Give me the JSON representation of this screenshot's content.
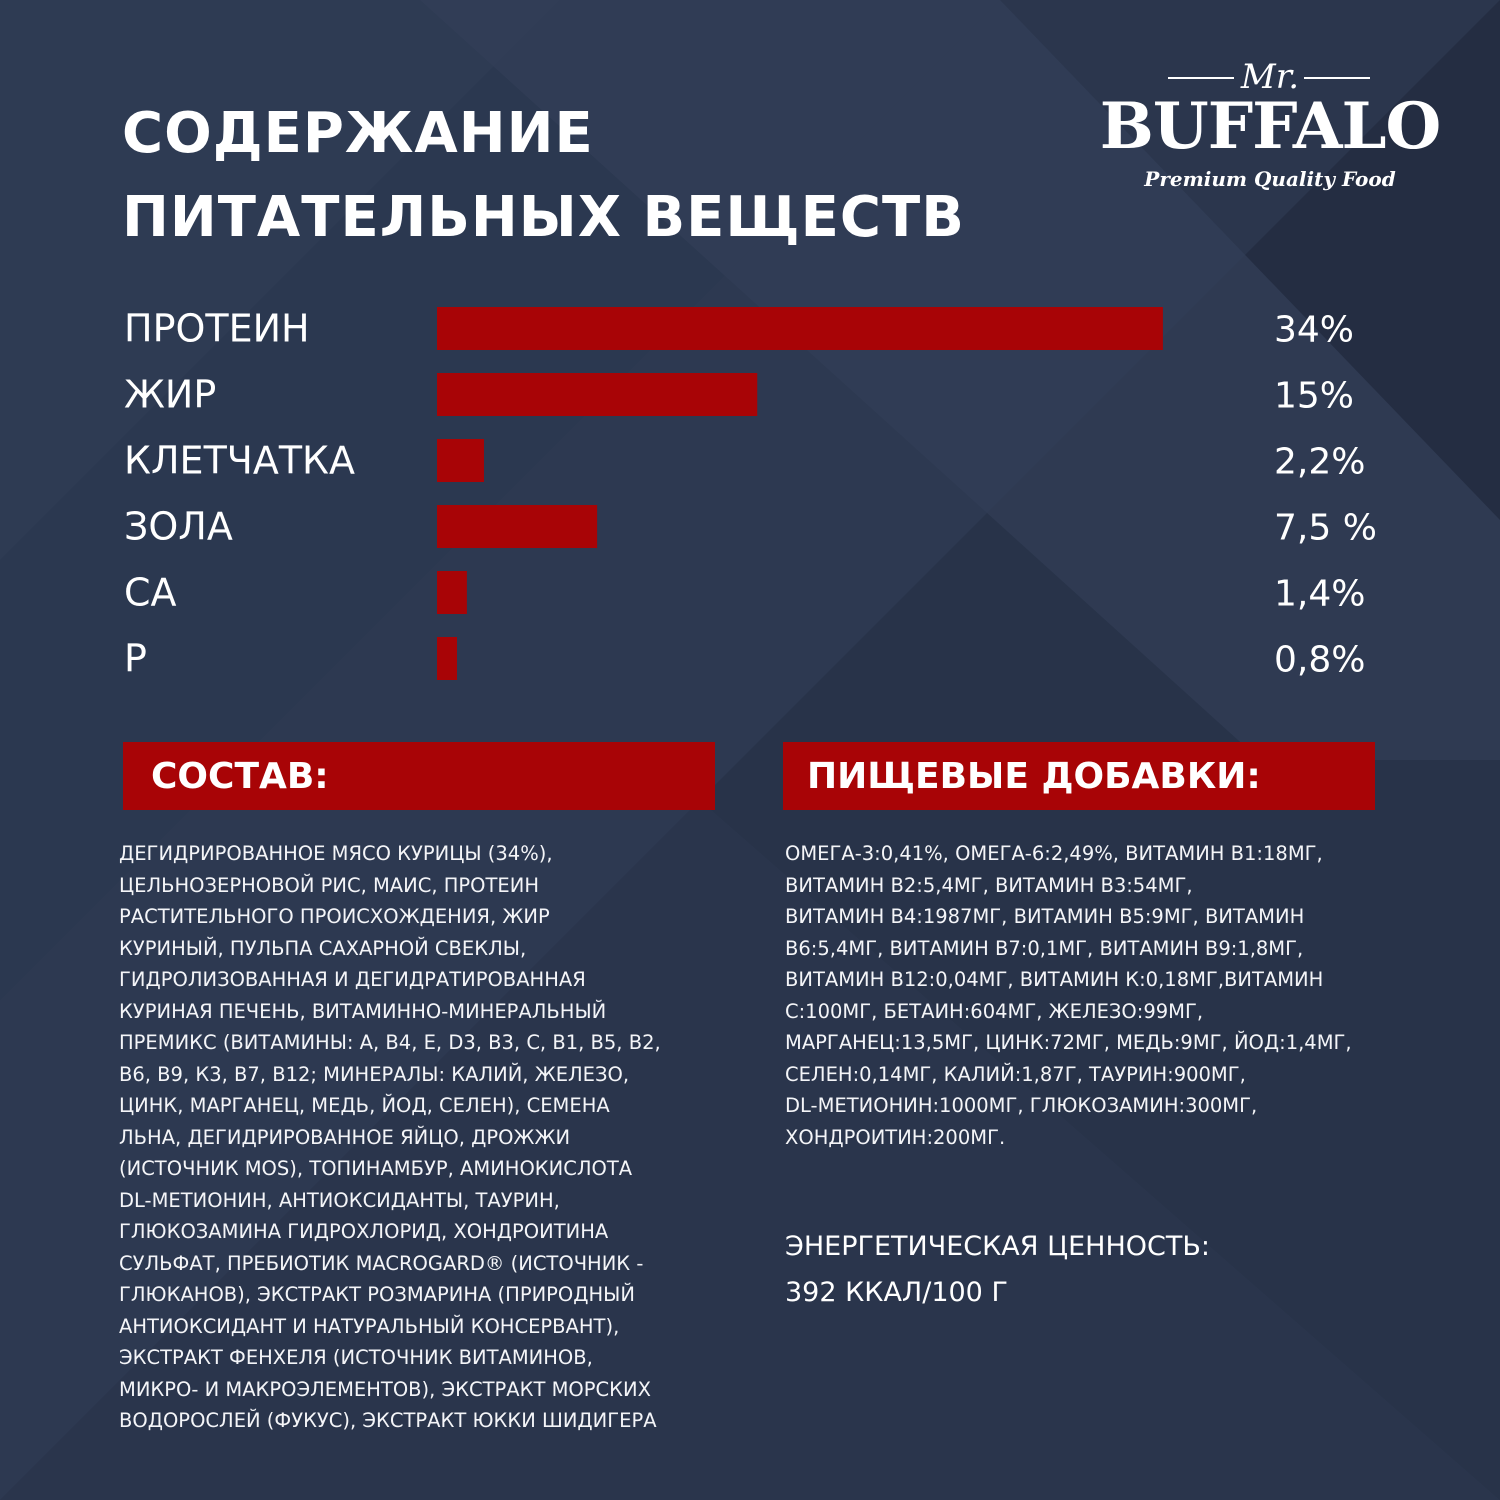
{
  "title": {
    "line1": "СОДЕРЖАНИЕ",
    "line2": "ПИТАТЕЛЬНЫХ ВЕЩЕСТВ"
  },
  "logo": {
    "prefix": "Mr.",
    "brand": "BUFFALO",
    "tagline": "Premium Quality Food"
  },
  "colors": {
    "background": "#26324a",
    "accent": "#a80406",
    "text": "#ffffff"
  },
  "chart_data": {
    "type": "bar",
    "orientation": "horizontal",
    "categories": [
      "ПРОТЕИН",
      "ЖИР",
      "КЛЕТЧАТКА",
      "ЗОЛА",
      "СА",
      "Р"
    ],
    "values": [
      34,
      15,
      2.2,
      7.5,
      1.4,
      0.8
    ],
    "value_labels": [
      "34%",
      "15%",
      "2,2%",
      "7,5 %",
      "1,4%",
      "0,8%"
    ],
    "unit": "%",
    "grid": false,
    "legend": "none"
  },
  "composition": {
    "heading": "СОСТАВ:",
    "lines": [
      "ДЕГИДРИРОВАННОЕ МЯСО КУРИЦЫ (34%),",
      "ЦЕЛЬНОЗЕРНОВОЙ РИС, МАИС, ПРОТЕИН",
      "РАСТИТЕЛЬНОГО ПРОИСХОЖДЕНИЯ, ЖИР",
      "КУРИНЫЙ, ПУЛЬПА САХАРНОЙ СВЕКЛЫ,",
      "ГИДРОЛИЗОВАННАЯ И ДЕГИДРАТИРОВАННАЯ",
      "КУРИНАЯ ПЕЧЕНЬ, ВИТАМИННО-МИНЕРАЛЬНЫЙ",
      "ПРЕМИКС (ВИТАМИНЫ: А, В4, Е, D3, В3, С, В1, В5, В2,",
      "В6, В9, К3, В7, В12; МИНЕРАЛЫ: КАЛИЙ, ЖЕЛЕЗО,",
      "ЦИНК, МАРГАНЕЦ, МЕДЬ, ЙОД, СЕЛЕН), СЕМЕНА",
      "ЛЬНА, ДЕГИДРИРОВАННОЕ ЯЙЦО, ДРОЖЖИ",
      "(ИСТОЧНИК MOS), ТОПИНАМБУР, АМИНОКИСЛОТА",
      "DL-МЕТИОНИН, АНТИОКСИДАНТЫ, ТАУРИН,",
      "ГЛЮКОЗАМИНА ГИДРОХЛОРИД, ХОНДРОИТИНА",
      "СУЛЬФАТ, ПРЕБИОТИК MACROGARD® (ИСТОЧНИК -",
      "ГЛЮКАНОВ), ЭКСТРАКТ РОЗМАРИНА (ПРИРОДНЫЙ",
      "АНТИОКСИДАНТ И НАТУРАЛЬНЫЙ КОНСЕРВАНТ),",
      "ЭКСТРАКТ ФЕНХЕЛЯ (ИСТОЧНИК ВИТАМИНОВ,",
      "МИКРО- И МАКРОЭЛЕМЕНТОВ), ЭКСТРАКТ МОРСКИХ",
      "ВОДОРОСЛЕЙ (ФУКУС), ЭКСТРАКТ ЮККИ ШИДИГЕРА"
    ]
  },
  "additives": {
    "heading": "ПИЩЕВЫЕ ДОБАВКИ:",
    "lines": [
      "ОМЕГА-3:0,41%, ОМЕГА-6:2,49%, ВИТАМИН В1:18МГ,",
      "ВИТАМИН В2:5,4МГ, ВИТАМИН В3:54МГ,",
      "ВИТАМИН В4:1987МГ, ВИТАМИН В5:9МГ, ВИТАМИН",
      "В6:5,4МГ, ВИТАМИН В7:0,1МГ, ВИТАМИН В9:1,8МГ,",
      "ВИТАМИН В12:0,04МГ, ВИТАМИН К:0,18МГ,ВИТАМИН",
      "С:100МГ, БЕТАИН:604МГ, ЖЕЛЕЗО:99МГ,",
      "МАРГАНЕЦ:13,5МГ, ЦИНК:72МГ, МЕДЬ:9МГ, ЙОД:1,4МГ,",
      "СЕЛЕН:0,14МГ, КАЛИЙ:1,87Г, ТАУРИН:900МГ,",
      "DL-МЕТИОНИН:1000МГ, ГЛЮКОЗАМИН:300МГ,",
      "ХОНДРОИТИН:200МГ."
    ]
  },
  "energy": {
    "label": "ЭНЕРГЕТИЧЕСКАЯ ЦЕННОСТЬ:",
    "value": "392 ККАЛ/100 Г"
  }
}
